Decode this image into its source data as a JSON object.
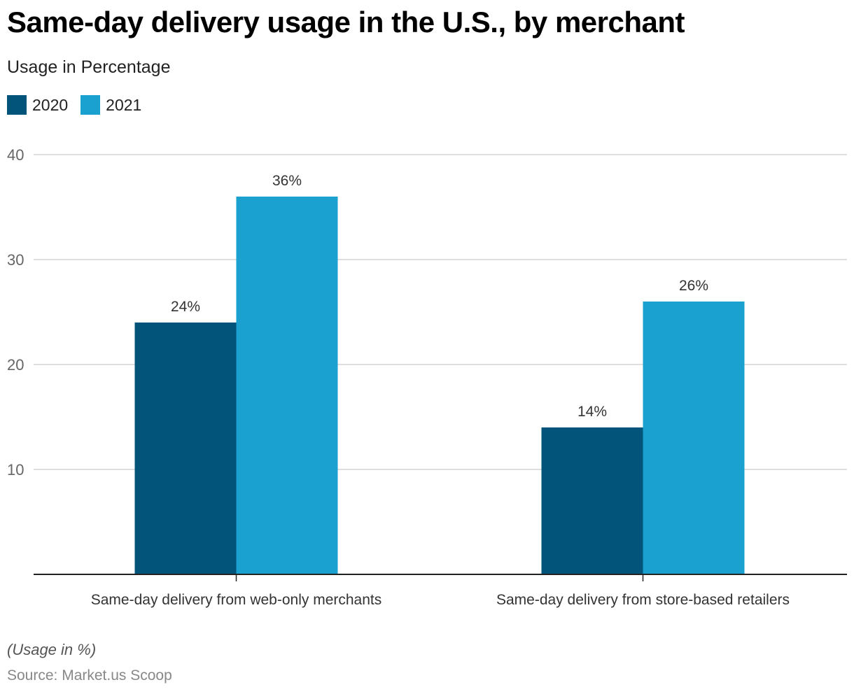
{
  "chart_data": {
    "type": "bar",
    "title": "Same-day delivery usage in the U.S., by merchant",
    "subtitle": "Usage in Percentage",
    "categories": [
      "Same-day delivery from web-only merchants",
      "Same-day delivery from store-based retailers"
    ],
    "series": [
      {
        "name": "2020",
        "color": "#02547A",
        "values": [
          24,
          14
        ],
        "labels": [
          "24%",
          "14%"
        ]
      },
      {
        "name": "2021",
        "color": "#1AA1CF",
        "values": [
          36,
          26
        ],
        "labels": [
          "36%",
          "26%"
        ]
      }
    ],
    "xlabel": "",
    "ylabel": "",
    "ylim": [
      0,
      40
    ],
    "yticks": [
      10,
      20,
      30,
      40
    ],
    "grid": true,
    "legend_position": "top-left",
    "note": "(Usage in %)",
    "source": "Source: Market.us Scoop"
  }
}
